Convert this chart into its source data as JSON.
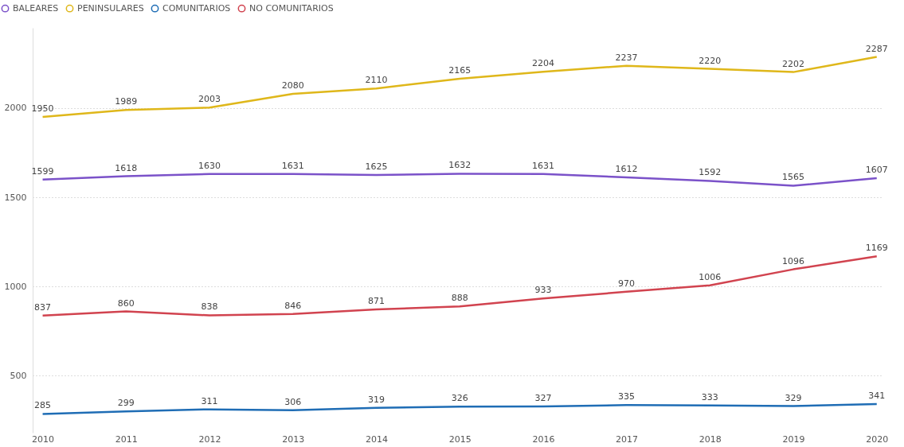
{
  "chart_data": {
    "type": "line",
    "categories": [
      "2010",
      "2011",
      "2012",
      "2013",
      "2014",
      "2015",
      "2016",
      "2017",
      "2018",
      "2019",
      "2020"
    ],
    "series": [
      {
        "name": "BALEARES",
        "color": "#7b52c9",
        "values": [
          1599,
          1618,
          1630,
          1631,
          1625,
          1632,
          1631,
          1612,
          1592,
          1565,
          1607
        ]
      },
      {
        "name": "PENINSULARES",
        "color": "#dfb71a",
        "values": [
          1950,
          1989,
          2003,
          2080,
          2110,
          2165,
          2204,
          2237,
          2220,
          2202,
          2287
        ]
      },
      {
        "name": "COMUNITARIOS",
        "color": "#1f6db5",
        "values": [
          285,
          299,
          311,
          306,
          319,
          326,
          327,
          335,
          333,
          329,
          341
        ]
      },
      {
        "name": "NO COMUNITARIOS",
        "color": "#d1434f",
        "values": [
          837,
          860,
          838,
          846,
          871,
          888,
          933,
          970,
          1006,
          1096,
          1169
        ]
      }
    ],
    "ylim": [
      180,
      2450
    ],
    "yticks": [
      500,
      1000,
      1500,
      2000
    ],
    "grid": "y",
    "legend": "top left",
    "data_labels": true,
    "marker": "none",
    "line_style": "solid"
  }
}
